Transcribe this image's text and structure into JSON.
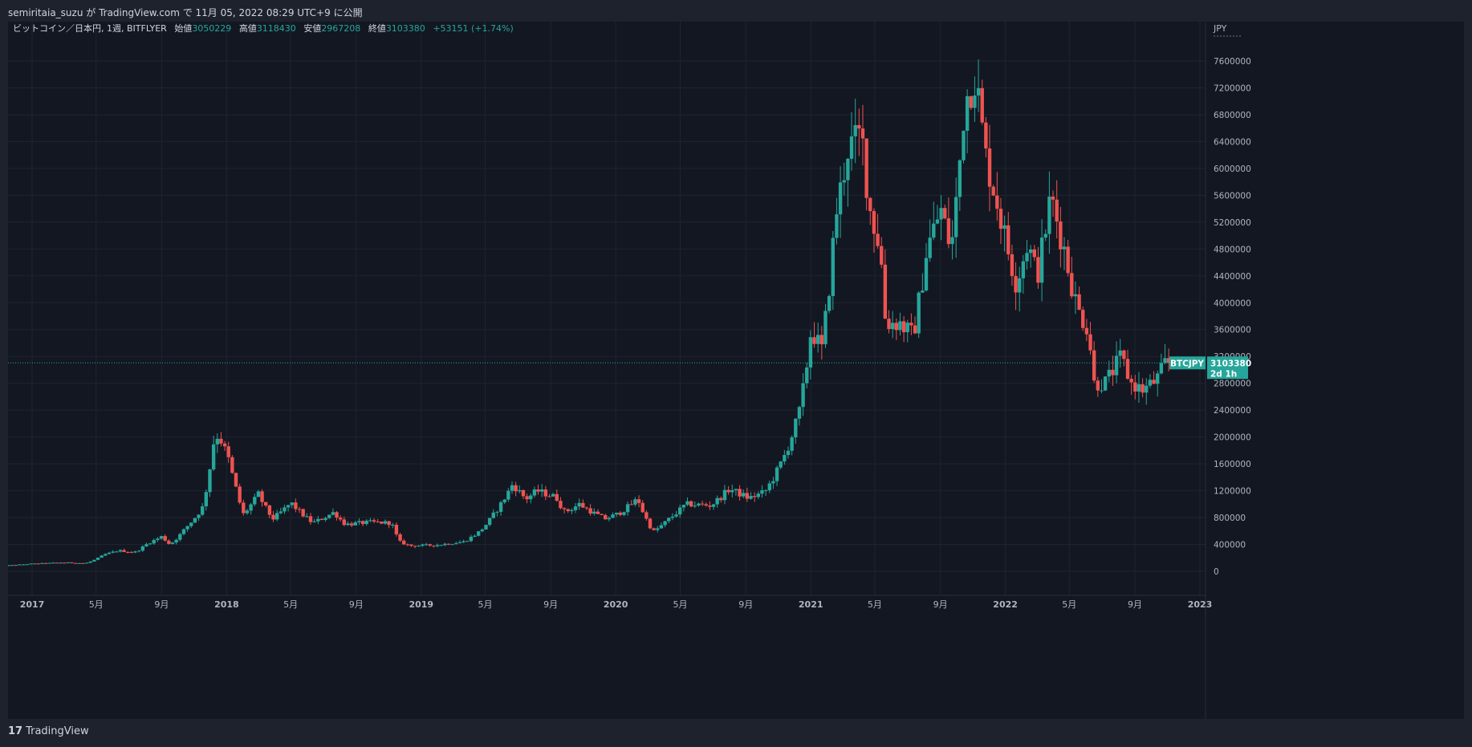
{
  "header": {
    "publish_line": "semiritaia_suzu が TradingView.com で 11月 05, 2022 08:29 UTC+9 に公開"
  },
  "footer": {
    "logo_mark": "17",
    "logo_text": "TradingView"
  },
  "legend": {
    "symbol": "ビットコイン／日本円, 1週, BITFLYER",
    "open_label": "始値",
    "open_value": "3050229",
    "high_label": "高値",
    "high_value": "3118430",
    "low_label": "安値",
    "low_value": "2967208",
    "close_label": "終値",
    "close_value": "3103380",
    "change": "+53151 (+1.74%)"
  },
  "price_tag": {
    "symbol": "BTCJPY",
    "price": "3103380",
    "countdown": "2d 1h"
  },
  "colors": {
    "background": "#131722",
    "frame": "#1e222d",
    "up": "#26a69a",
    "down": "#ef5350",
    "grid": "#1f2430",
    "text": "#d1d4dc",
    "axis_text": "#b2b5be"
  },
  "chart_data": {
    "type": "candlestick",
    "interval": "1 week",
    "grid": true,
    "currency_label": "JPY",
    "current_price": 3103380,
    "y_axis": {
      "min": -300000,
      "max": 8200000,
      "ticks": [
        0,
        400000,
        800000,
        1200000,
        1600000,
        2000000,
        2400000,
        2800000,
        3200000,
        3600000,
        4000000,
        4400000,
        4800000,
        5200000,
        5600000,
        6000000,
        6400000,
        6800000,
        7200000,
        7600000
      ]
    },
    "x_axis": {
      "ticks": [
        {
          "label": "2017",
          "date": "2017-01-01",
          "bold": true
        },
        {
          "label": "5月",
          "date": "2017-05-01",
          "bold": false
        },
        {
          "label": "9月",
          "date": "2017-09-01",
          "bold": false
        },
        {
          "label": "2018",
          "date": "2018-01-01",
          "bold": true
        },
        {
          "label": "5月",
          "date": "2018-05-01",
          "bold": false
        },
        {
          "label": "9月",
          "date": "2018-09-01",
          "bold": false
        },
        {
          "label": "2019",
          "date": "2019-01-01",
          "bold": true
        },
        {
          "label": "5月",
          "date": "2019-05-01",
          "bold": false
        },
        {
          "label": "9月",
          "date": "2019-09-01",
          "bold": false
        },
        {
          "label": "2020",
          "date": "2020-01-01",
          "bold": true
        },
        {
          "label": "5月",
          "date": "2020-05-01",
          "bold": false
        },
        {
          "label": "9月",
          "date": "2020-09-01",
          "bold": false
        },
        {
          "label": "2021",
          "date": "2021-01-01",
          "bold": true
        },
        {
          "label": "5月",
          "date": "2021-05-01",
          "bold": false
        },
        {
          "label": "9月",
          "date": "2021-09-01",
          "bold": false
        },
        {
          "label": "2022",
          "date": "2022-01-01",
          "bold": true
        },
        {
          "label": "5月",
          "date": "2022-05-01",
          "bold": false
        },
        {
          "label": "9月",
          "date": "2022-09-01",
          "bold": false
        },
        {
          "label": "2023",
          "date": "2023-01-01",
          "bold": true
        }
      ]
    },
    "series_anchors": [
      {
        "date": "2016-10-25",
        "close": 75000
      },
      {
        "date": "2017-01-01",
        "close": 110000
      },
      {
        "date": "2017-03-01",
        "close": 130000
      },
      {
        "date": "2017-04-15",
        "close": 120000
      },
      {
        "date": "2017-05-20",
        "close": 250000
      },
      {
        "date": "2017-06-15",
        "close": 310000
      },
      {
        "date": "2017-07-15",
        "close": 280000
      },
      {
        "date": "2017-08-10",
        "close": 420000
      },
      {
        "date": "2017-09-05",
        "close": 520000
      },
      {
        "date": "2017-09-20",
        "close": 400000
      },
      {
        "date": "2017-10-20",
        "close": 650000
      },
      {
        "date": "2017-11-20",
        "close": 950000
      },
      {
        "date": "2017-12-10",
        "close": 1900000
      },
      {
        "date": "2017-12-20",
        "close": 2050000
      },
      {
        "date": "2018-01-07",
        "close": 1700000
      },
      {
        "date": "2018-01-20",
        "close": 1300000
      },
      {
        "date": "2018-02-05",
        "close": 850000
      },
      {
        "date": "2018-03-05",
        "close": 1150000
      },
      {
        "date": "2018-04-01",
        "close": 780000
      },
      {
        "date": "2018-05-05",
        "close": 1020000
      },
      {
        "date": "2018-06-15",
        "close": 720000
      },
      {
        "date": "2018-07-25",
        "close": 880000
      },
      {
        "date": "2018-08-15",
        "close": 700000
      },
      {
        "date": "2018-10-01",
        "close": 730000
      },
      {
        "date": "2018-11-10",
        "close": 720000
      },
      {
        "date": "2018-11-25",
        "close": 440000
      },
      {
        "date": "2018-12-15",
        "close": 380000
      },
      {
        "date": "2019-02-01",
        "close": 390000
      },
      {
        "date": "2019-03-25",
        "close": 440000
      },
      {
        "date": "2019-04-25",
        "close": 600000
      },
      {
        "date": "2019-05-25",
        "close": 900000
      },
      {
        "date": "2019-06-25",
        "close": 1300000
      },
      {
        "date": "2019-07-20",
        "close": 1080000
      },
      {
        "date": "2019-08-10",
        "close": 1200000
      },
      {
        "date": "2019-09-15",
        "close": 1100000
      },
      {
        "date": "2019-10-01",
        "close": 880000
      },
      {
        "date": "2019-10-28",
        "close": 1000000
      },
      {
        "date": "2019-12-15",
        "close": 780000
      },
      {
        "date": "2020-01-10",
        "close": 860000
      },
      {
        "date": "2020-02-15",
        "close": 1080000
      },
      {
        "date": "2020-03-15",
        "close": 590000
      },
      {
        "date": "2020-04-15",
        "close": 790000
      },
      {
        "date": "2020-05-15",
        "close": 1000000
      },
      {
        "date": "2020-07-01",
        "close": 980000
      },
      {
        "date": "2020-08-05",
        "close": 1230000
      },
      {
        "date": "2020-09-10",
        "close": 1090000
      },
      {
        "date": "2020-10-10",
        "close": 1180000
      },
      {
        "date": "2020-11-15",
        "close": 1700000
      },
      {
        "date": "2020-12-15",
        "close": 2400000
      },
      {
        "date": "2021-01-05",
        "close": 3600000
      },
      {
        "date": "2021-01-25",
        "close": 3300000
      },
      {
        "date": "2021-02-20",
        "close": 5300000
      },
      {
        "date": "2021-03-15",
        "close": 6300000
      },
      {
        "date": "2021-04-10",
        "close": 6500000
      },
      {
        "date": "2021-04-25",
        "close": 5400000
      },
      {
        "date": "2021-05-15",
        "close": 4800000
      },
      {
        "date": "2021-05-25",
        "close": 3700000
      },
      {
        "date": "2021-06-20",
        "close": 3700000
      },
      {
        "date": "2021-07-15",
        "close": 3500000
      },
      {
        "date": "2021-08-10",
        "close": 4800000
      },
      {
        "date": "2021-09-05",
        "close": 5400000
      },
      {
        "date": "2021-09-25",
        "close": 4800000
      },
      {
        "date": "2021-10-20",
        "close": 7000000
      },
      {
        "date": "2021-11-10",
        "close": 7400000
      },
      {
        "date": "2021-11-28",
        "close": 6200000
      },
      {
        "date": "2021-12-20",
        "close": 5500000
      },
      {
        "date": "2022-01-25",
        "close": 4300000
      },
      {
        "date": "2022-02-15",
        "close": 4900000
      },
      {
        "date": "2022-03-05",
        "close": 4400000
      },
      {
        "date": "2022-03-31",
        "close": 5600000
      },
      {
        "date": "2022-04-25",
        "close": 4800000
      },
      {
        "date": "2022-05-20",
        "close": 3900000
      },
      {
        "date": "2022-06-10",
        "close": 3600000
      },
      {
        "date": "2022-06-20",
        "close": 2800000
      },
      {
        "date": "2022-07-10",
        "close": 2800000
      },
      {
        "date": "2022-08-10",
        "close": 3200000
      },
      {
        "date": "2022-08-28",
        "close": 2800000
      },
      {
        "date": "2022-09-20",
        "close": 2700000
      },
      {
        "date": "2022-10-15",
        "close": 2850000
      },
      {
        "date": "2022-11-01",
        "close": 3103380
      }
    ]
  }
}
